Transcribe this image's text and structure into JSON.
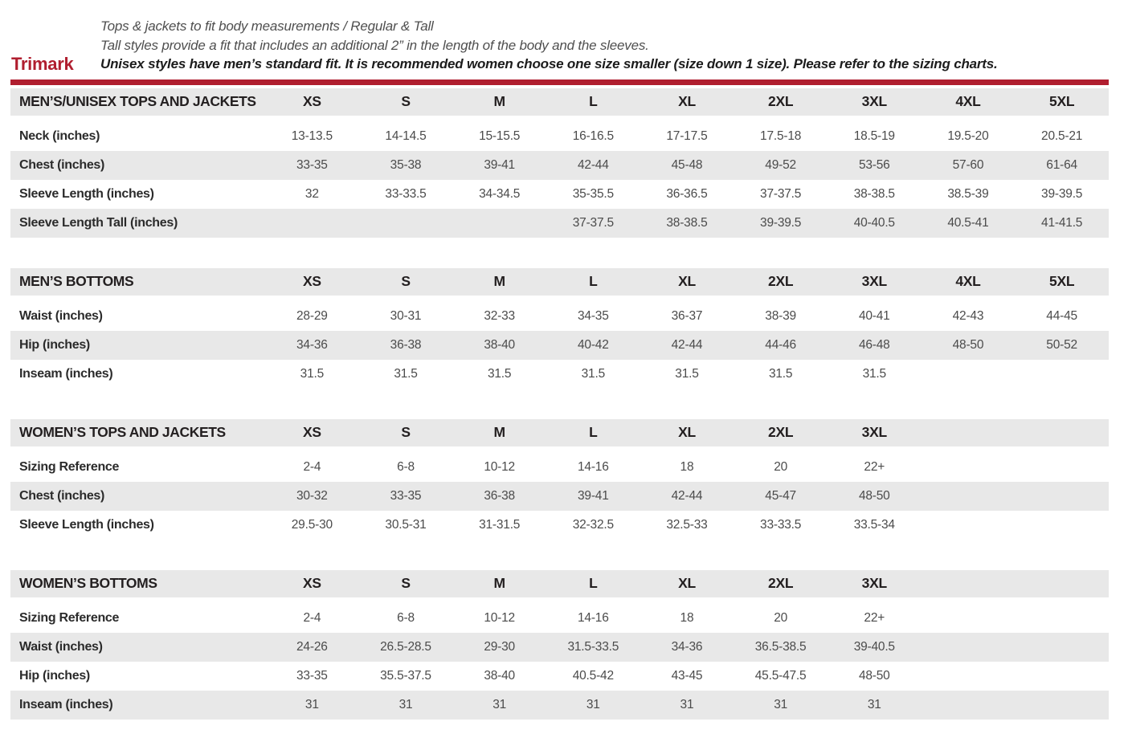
{
  "header": {
    "brand": "Trimark",
    "intro": [
      {
        "text": "Tops & jackets to fit body measurements / Regular & Tall",
        "bold": false
      },
      {
        "text": "Tall styles provide a fit that includes an additional 2” in the length of the body and the sleeves.",
        "bold": false
      },
      {
        "text": "Unisex styles have men’s standard fit. It is recommended women choose one size smaller (size down 1 size).  Please refer to the sizing charts.",
        "bold": true
      }
    ]
  },
  "colors": {
    "accent_red": "#b01e2f",
    "stripe_gray": "#e8e8e8",
    "header_text": "#231f20",
    "value_text": "#4b4b4b"
  },
  "tables": [
    {
      "id": "mens-unisex-tops-and-jackets",
      "title": "MEN’S/UNISEX TOPS AND JACKETS",
      "sizes": [
        "XS",
        "S",
        "M",
        "L",
        "XL",
        "2XL",
        "3XL",
        "4XL",
        "5XL"
      ],
      "rows": [
        {
          "label": "Neck (inches)",
          "values": [
            "13-13.5",
            "14-14.5",
            "15-15.5",
            "16-16.5",
            "17-17.5",
            "17.5-18",
            "18.5-19",
            "19.5-20",
            "20.5-21"
          ]
        },
        {
          "label": "Chest (inches)",
          "values": [
            "33-35",
            "35-38",
            "39-41",
            "42-44",
            "45-48",
            "49-52",
            "53-56",
            "57-60",
            "61-64"
          ]
        },
        {
          "label": "Sleeve Length (inches)",
          "values": [
            "32",
            "33-33.5",
            "34-34.5",
            "35-35.5",
            "36-36.5",
            "37-37.5",
            "38-38.5",
            "38.5-39",
            "39-39.5"
          ]
        },
        {
          "label": "Sleeve Length Tall (inches)",
          "values": [
            "",
            "",
            "",
            "37-37.5",
            "38-38.5",
            "39-39.5",
            "40-40.5",
            "40.5-41",
            "41-41.5"
          ]
        }
      ]
    },
    {
      "id": "mens-bottoms",
      "title": "MEN’S BOTTOMS",
      "sizes": [
        "XS",
        "S",
        "M",
        "L",
        "XL",
        "2XL",
        "3XL",
        "4XL",
        "5XL"
      ],
      "rows": [
        {
          "label": "Waist (inches)",
          "values": [
            "28-29",
            "30-31",
            "32-33",
            "34-35",
            "36-37",
            "38-39",
            "40-41",
            "42-43",
            "44-45"
          ]
        },
        {
          "label": "Hip (inches)",
          "values": [
            "34-36",
            "36-38",
            "38-40",
            "40-42",
            "42-44",
            "44-46",
            "46-48",
            "48-50",
            "50-52"
          ]
        },
        {
          "label": "Inseam (inches)",
          "values": [
            "31.5",
            "31.5",
            "31.5",
            "31.5",
            "31.5",
            "31.5",
            "31.5",
            "",
            ""
          ]
        }
      ]
    },
    {
      "id": "womens-tops-and-jackets",
      "title": "WOMEN’S TOPS AND JACKETS",
      "sizes": [
        "XS",
        "S",
        "M",
        "L",
        "XL",
        "2XL",
        "3XL"
      ],
      "rows": [
        {
          "label": "Sizing Reference",
          "values": [
            "2-4",
            "6-8",
            "10-12",
            "14-16",
            "18",
            "20",
            "22+"
          ]
        },
        {
          "label": "Chest (inches)",
          "values": [
            "30-32",
            "33-35",
            "36-38",
            "39-41",
            "42-44",
            "45-47",
            "48-50"
          ]
        },
        {
          "label": "Sleeve Length (inches)",
          "values": [
            "29.5-30",
            "30.5-31",
            "31-31.5",
            "32-32.5",
            "32.5-33",
            "33-33.5",
            "33.5-34"
          ]
        }
      ]
    },
    {
      "id": "womens-bottoms",
      "title": "WOMEN’S BOTTOMS",
      "sizes": [
        "XS",
        "S",
        "M",
        "L",
        "XL",
        "2XL",
        "3XL"
      ],
      "rows": [
        {
          "label": "Sizing Reference",
          "values": [
            "2-4",
            "6-8",
            "10-12",
            "14-16",
            "18",
            "20",
            "22+"
          ]
        },
        {
          "label": "Waist (inches)",
          "values": [
            "24-26",
            "26.5-28.5",
            "29-30",
            "31.5-33.5",
            "34-36",
            "36.5-38.5",
            "39-40.5"
          ]
        },
        {
          "label": "Hip (inches)",
          "values": [
            "33-35",
            "35.5-37.5",
            "38-40",
            "40.5-42",
            "43-45",
            "45.5-47.5",
            "48-50"
          ]
        },
        {
          "label": "Inseam (inches)",
          "values": [
            "31",
            "31",
            "31",
            "31",
            "31",
            "31",
            "31"
          ]
        }
      ]
    }
  ]
}
